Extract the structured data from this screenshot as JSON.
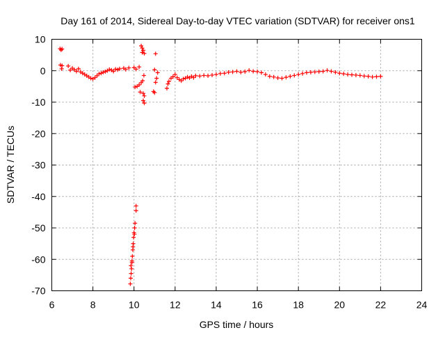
{
  "chart_data": {
    "type": "scatter",
    "title": "Day 161 of 2014, Sidereal Day-to-day VTEC variation (SDTVAR) for receiver ons1",
    "xlabel": "GPS time / hours",
    "ylabel": "SDTVAR / TECUs",
    "xlim": [
      6,
      24
    ],
    "ylim": [
      -70,
      10
    ],
    "xticks": [
      6,
      8,
      10,
      12,
      14,
      16,
      18,
      20,
      22,
      24
    ],
    "yticks": [
      10,
      0,
      -10,
      -20,
      -30,
      -40,
      -50,
      -60,
      -70
    ],
    "grid": true,
    "marker": "+",
    "color": "#ff0000",
    "series": [
      {
        "name": "SDTVAR ons1",
        "points": [
          [
            6.4,
            7.0
          ],
          [
            6.45,
            6.6
          ],
          [
            6.5,
            6.9
          ],
          [
            6.42,
            1.8
          ],
          [
            6.48,
            0.6
          ],
          [
            6.5,
            1.6
          ],
          [
            6.8,
            1.5
          ],
          [
            6.9,
            0.2
          ],
          [
            7.0,
            0.8
          ],
          [
            7.1,
            0.3
          ],
          [
            7.2,
            -0.2
          ],
          [
            7.3,
            0.6
          ],
          [
            7.4,
            -0.4
          ],
          [
            7.5,
            -0.8
          ],
          [
            7.6,
            -1.2
          ],
          [
            7.7,
            -1.6
          ],
          [
            7.8,
            -2.0
          ],
          [
            7.9,
            -2.4
          ],
          [
            8.0,
            -2.6
          ],
          [
            8.1,
            -2.2
          ],
          [
            8.2,
            -1.6
          ],
          [
            8.3,
            -1.0
          ],
          [
            8.4,
            -0.8
          ],
          [
            8.5,
            -0.5
          ],
          [
            8.6,
            -0.3
          ],
          [
            8.7,
            0.0
          ],
          [
            8.8,
            0.4
          ],
          [
            8.9,
            0.2
          ],
          [
            9.0,
            -0.2
          ],
          [
            9.1,
            0.5
          ],
          [
            9.2,
            0.3
          ],
          [
            9.3,
            0.6
          ],
          [
            9.5,
            0.8
          ],
          [
            9.6,
            0.4
          ],
          [
            9.75,
            0.9
          ],
          [
            10.0,
            1.0
          ],
          [
            10.1,
            0.5
          ],
          [
            10.25,
            1.2
          ],
          [
            10.35,
            7.9
          ],
          [
            10.4,
            7.2
          ],
          [
            10.45,
            6.5
          ],
          [
            10.4,
            5.8
          ],
          [
            10.5,
            5.5
          ],
          [
            10.48,
            -1.5
          ],
          [
            10.42,
            -3.2
          ],
          [
            10.35,
            -3.8
          ],
          [
            10.25,
            -4.5
          ],
          [
            10.15,
            -5.0
          ],
          [
            10.05,
            -5.2
          ],
          [
            10.3,
            -6.8
          ],
          [
            10.45,
            -7.2
          ],
          [
            10.5,
            -8.0
          ],
          [
            10.45,
            -9.5
          ],
          [
            10.5,
            -10.3
          ],
          [
            10.95,
            -6.6
          ],
          [
            11.0,
            -7.0
          ],
          [
            11.05,
            -3.7
          ],
          [
            11.1,
            -2.4
          ],
          [
            11.15,
            -0.6
          ],
          [
            11.0,
            0.3
          ],
          [
            11.05,
            5.4
          ],
          [
            11.6,
            -5.6
          ],
          [
            11.65,
            -4.2
          ],
          [
            11.7,
            -3.4
          ],
          [
            11.8,
            -2.4
          ],
          [
            11.9,
            -1.9
          ],
          [
            12.0,
            -1.2
          ],
          [
            12.1,
            -2.2
          ],
          [
            12.2,
            -2.8
          ],
          [
            12.3,
            -3.2
          ],
          [
            12.4,
            -2.6
          ],
          [
            12.5,
            -2.4
          ],
          [
            12.6,
            -2.0
          ],
          [
            12.7,
            -2.3
          ],
          [
            12.8,
            -1.8
          ],
          [
            12.9,
            -2.2
          ],
          [
            13.0,
            -1.6
          ],
          [
            13.2,
            -1.7
          ],
          [
            13.4,
            -1.5
          ],
          [
            13.6,
            -1.6
          ],
          [
            13.8,
            -1.4
          ],
          [
            14.0,
            -1.2
          ],
          [
            14.2,
            -0.9
          ],
          [
            14.4,
            -0.8
          ],
          [
            14.6,
            -0.5
          ],
          [
            14.8,
            -0.4
          ],
          [
            15.0,
            -0.2
          ],
          [
            15.2,
            -0.5
          ],
          [
            15.4,
            -0.3
          ],
          [
            15.6,
            0.1
          ],
          [
            15.8,
            -0.2
          ],
          [
            16.0,
            -0.3
          ],
          [
            16.2,
            -0.6
          ],
          [
            16.4,
            -1.2
          ],
          [
            16.6,
            -1.8
          ],
          [
            16.8,
            -2.0
          ],
          [
            17.0,
            -2.3
          ],
          [
            17.2,
            -2.4
          ],
          [
            17.4,
            -2.1
          ],
          [
            17.6,
            -1.8
          ],
          [
            17.8,
            -1.5
          ],
          [
            18.0,
            -1.2
          ],
          [
            18.2,
            -0.9
          ],
          [
            18.4,
            -0.6
          ],
          [
            18.6,
            -0.5
          ],
          [
            18.8,
            -0.4
          ],
          [
            19.0,
            -0.3
          ],
          [
            19.2,
            -0.2
          ],
          [
            19.4,
            0.1
          ],
          [
            19.6,
            -0.2
          ],
          [
            19.8,
            -0.5
          ],
          [
            20.0,
            -0.8
          ],
          [
            20.2,
            -1.0
          ],
          [
            20.4,
            -1.2
          ],
          [
            20.6,
            -1.3
          ],
          [
            20.8,
            -1.4
          ],
          [
            21.0,
            -1.5
          ],
          [
            21.2,
            -1.7
          ],
          [
            21.4,
            -1.8
          ],
          [
            21.6,
            -2.0
          ],
          [
            21.8,
            -1.9
          ],
          [
            22.0,
            -1.8
          ],
          [
            10.1,
            -43.0
          ],
          [
            10.1,
            -44.5
          ],
          [
            10.05,
            -48.5
          ],
          [
            10.03,
            -50.0
          ],
          [
            10.0,
            -51.5
          ],
          [
            9.98,
            -53.0
          ],
          [
            9.96,
            -55.0
          ],
          [
            9.94,
            -57.0
          ],
          [
            9.92,
            -59.0
          ],
          [
            9.9,
            -61.0
          ],
          [
            9.88,
            -63.0
          ],
          [
            9.86,
            -64.5
          ],
          [
            9.84,
            -66.0
          ],
          [
            9.82,
            -67.8
          ],
          [
            9.85,
            -62.0
          ],
          [
            9.95,
            -56.0
          ],
          [
            10.02,
            -52.0
          ],
          [
            9.9,
            -60.5
          ]
        ]
      }
    ]
  }
}
